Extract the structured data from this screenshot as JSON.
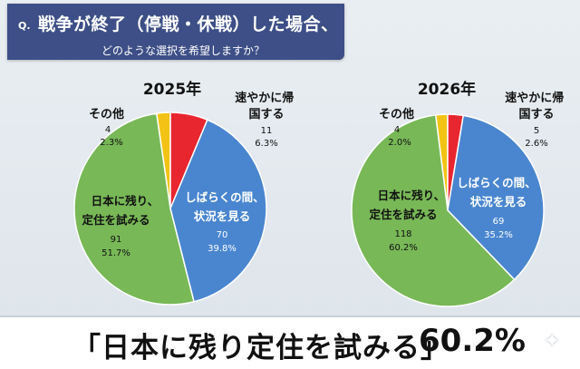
{
  "question": {
    "prefix": "Q.",
    "line1": "戦争が終了（停戦・休戦）した場合、",
    "line2": "どのような選択を希望しますか？"
  },
  "chart_data": [
    {
      "type": "pie",
      "title": "2025年",
      "slices": [
        {
          "label": "その他",
          "count": "4",
          "percent": "2.3%",
          "value": 2.3,
          "color": "#f2c315"
        },
        {
          "label": "速やかに帰国する",
          "count": "11",
          "percent": "6.3%",
          "value": 6.3,
          "color": "#e8262f"
        },
        {
          "label": "しばらくの間、状況を見る",
          "count": "70",
          "percent": "39.8%",
          "value": 39.8,
          "color": "#4a86cf"
        },
        {
          "label": "日本に残り、定住を試みる",
          "count": "91",
          "percent": "51.7%",
          "value": 51.7,
          "color": "#78b857"
        }
      ]
    },
    {
      "type": "pie",
      "title": "2026年",
      "slices": [
        {
          "label": "その他",
          "count": "4",
          "percent": "2.0%",
          "value": 2.0,
          "color": "#f2c315"
        },
        {
          "label": "速やかに帰国する",
          "count": "5",
          "percent": "2.6%",
          "value": 2.6,
          "color": "#e8262f"
        },
        {
          "label": "しばらくの間、状況を見る",
          "count": "69",
          "percent": "35.2%",
          "value": 35.2,
          "color": "#4a86cf"
        },
        {
          "label": "日本に残り、定住を試みる",
          "count": "118",
          "percent": "60.2%",
          "value": 60.2,
          "color": "#78b857"
        }
      ]
    }
  ],
  "banner": {
    "text": "「日本に残り定住を試みる」",
    "percent": "60.2%"
  }
}
